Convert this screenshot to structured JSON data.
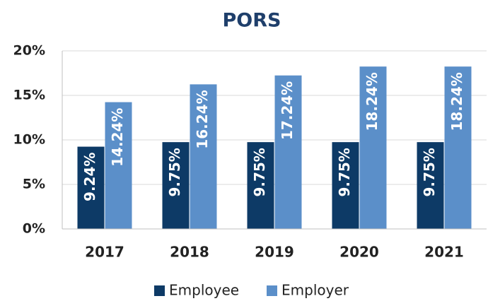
{
  "chart_data": {
    "type": "bar",
    "title": "PORS",
    "categories": [
      "2017",
      "2018",
      "2019",
      "2020",
      "2021"
    ],
    "series": [
      {
        "name": "Employee",
        "color": "#0d3a66",
        "values": [
          9.24,
          9.75,
          9.75,
          9.75,
          9.75
        ],
        "value_labels": [
          "9.24%",
          "9.75%",
          "9.75%",
          "9.75%",
          "9.75%"
        ]
      },
      {
        "name": "Employer",
        "color": "#5b8fc9",
        "values": [
          14.24,
          16.24,
          17.24,
          18.24,
          18.24
        ],
        "value_labels": [
          "14.24%",
          "16.24%",
          "17.24%",
          "18.24%",
          "18.24%"
        ]
      }
    ],
    "ylim": [
      0,
      20
    ],
    "yticks": [
      {
        "value": 0,
        "label": "0%"
      },
      {
        "value": 5,
        "label": "5%"
      },
      {
        "value": 10,
        "label": "10%"
      },
      {
        "value": 15,
        "label": "15%"
      },
      {
        "value": 20,
        "label": "20%"
      }
    ],
    "grid": true,
    "legend": "bottom"
  }
}
